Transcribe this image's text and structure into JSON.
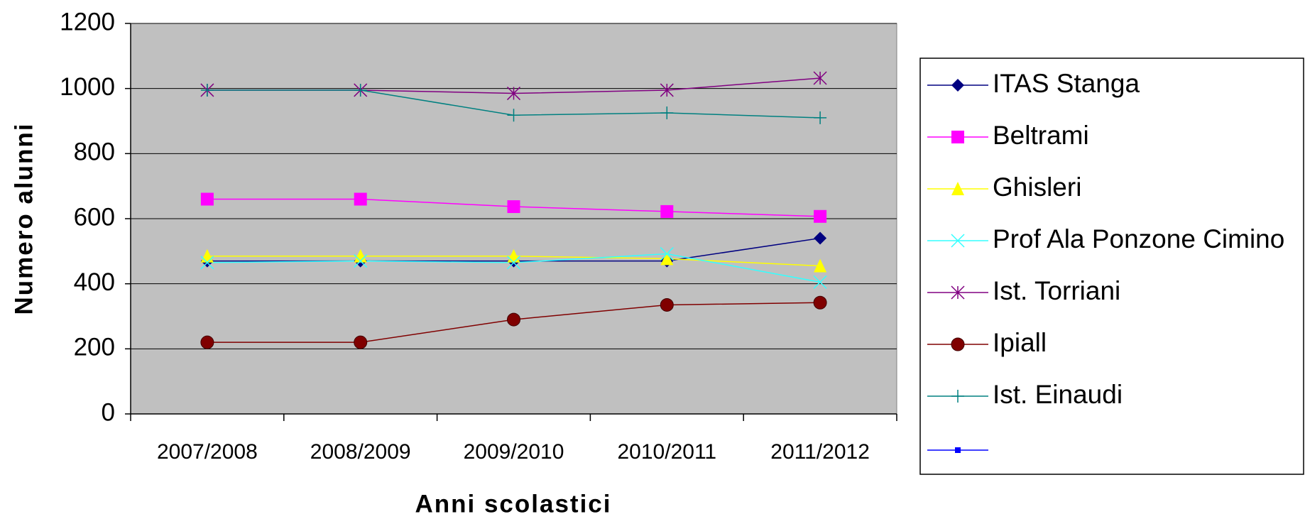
{
  "chart_data": {
    "type": "line",
    "x_label": "Anni scolastici",
    "y_label": "Numero alunni",
    "categories": [
      "2007/2008",
      "2008/2009",
      "2009/2010",
      "2010/2011",
      "2011/2012"
    ],
    "series": [
      {
        "name": "ITAS Stanga",
        "color": "#000080",
        "marker": "diamond",
        "values": [
          470,
          470,
          470,
          470,
          540
        ]
      },
      {
        "name": "Beltrami",
        "color": "#ff00ff",
        "marker": "square",
        "values": [
          660,
          660,
          637,
          622,
          607
        ]
      },
      {
        "name": "Ghisleri",
        "color": "#ffff00",
        "marker": "triangle",
        "values": [
          485,
          485,
          485,
          477,
          455
        ]
      },
      {
        "name": "Prof Ala Ponzone Cimino",
        "color": "#33ffff",
        "marker": "x",
        "values": [
          465,
          470,
          465,
          492,
          405
        ]
      },
      {
        "name": "Ist. Torriani",
        "color": "#800080",
        "marker": "asterisk",
        "values": [
          995,
          995,
          985,
          995,
          1032
        ]
      },
      {
        "name": "Ipiall",
        "color": "#800000",
        "marker": "circle",
        "values": [
          220,
          220,
          290,
          335,
          342
        ]
      },
      {
        "name": "Ist. Einaudi",
        "color": "#008080",
        "marker": "plus",
        "values": [
          995,
          995,
          918,
          925,
          910
        ]
      }
    ],
    "ylim": [
      0,
      1200
    ],
    "yticks": [
      0,
      200,
      400,
      600,
      800,
      1000,
      1200
    ],
    "grid": true,
    "legend": "right"
  }
}
